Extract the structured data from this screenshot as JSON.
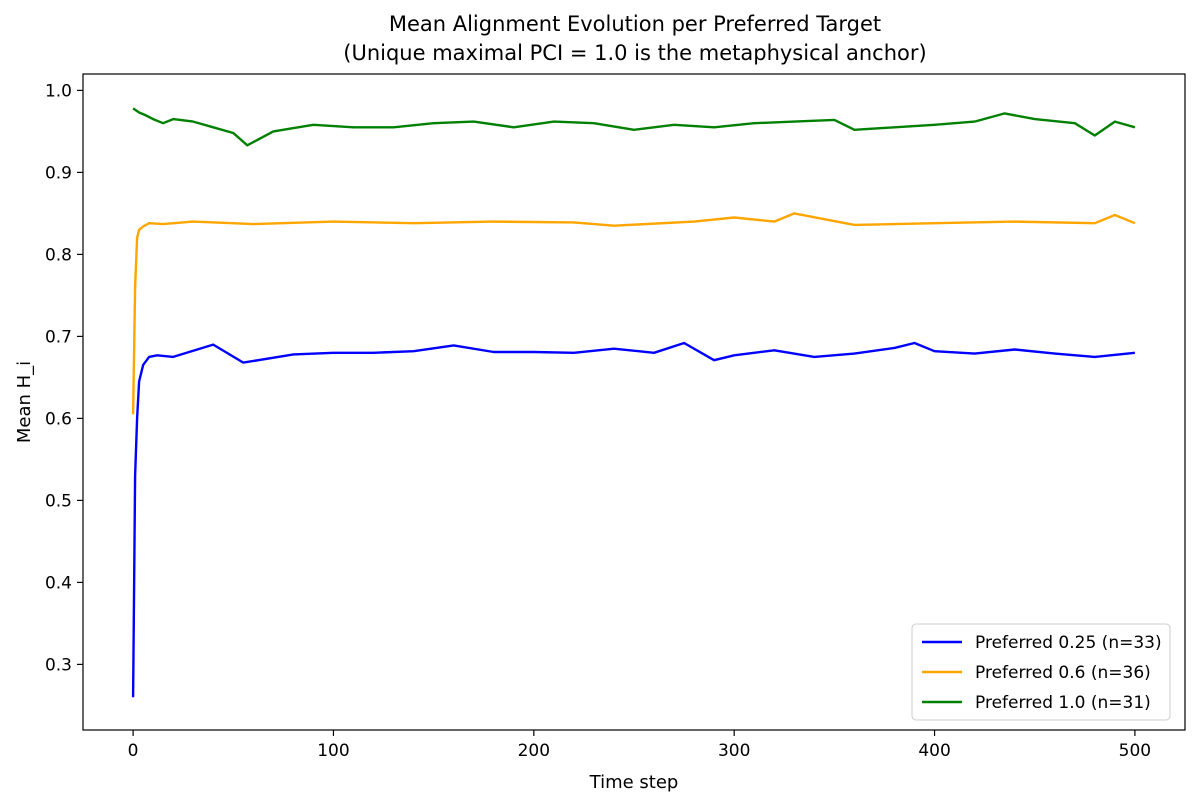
{
  "chart_data": {
    "type": "line",
    "title": "Mean Alignment Evolution per Preferred Target",
    "subtitle": "(Unique maximal PCI = 1.0 is the metaphysical anchor)",
    "xlabel": "Time step",
    "ylabel": "Mean H_i",
    "xlim": [
      -25,
      525
    ],
    "ylim": [
      0.22,
      1.02
    ],
    "xticks": [
      0,
      100,
      200,
      300,
      400,
      500
    ],
    "yticks": [
      0.3,
      0.4,
      0.5,
      0.6,
      0.7,
      0.8,
      0.9,
      1.0
    ],
    "xtick_labels": [
      "0",
      "100",
      "200",
      "300",
      "400",
      "500"
    ],
    "ytick_labels": [
      "0.3",
      "0.4",
      "0.5",
      "0.6",
      "0.7",
      "0.8",
      "0.9",
      "1.0"
    ],
    "grid": false,
    "legend_position": "lower-right",
    "series": [
      {
        "name": "Preferred 0.25 (n=33)",
        "color": "#0000ff",
        "x": [
          0,
          1,
          2,
          3,
          5,
          8,
          12,
          20,
          40,
          55,
          80,
          100,
          120,
          140,
          160,
          180,
          200,
          220,
          240,
          260,
          275,
          290,
          300,
          320,
          340,
          360,
          380,
          390,
          400,
          420,
          440,
          460,
          480,
          500
        ],
        "y": [
          0.26,
          0.53,
          0.6,
          0.645,
          0.665,
          0.675,
          0.677,
          0.675,
          0.69,
          0.668,
          0.678,
          0.68,
          0.68,
          0.682,
          0.689,
          0.681,
          0.681,
          0.68,
          0.685,
          0.68,
          0.692,
          0.671,
          0.677,
          0.683,
          0.675,
          0.679,
          0.686,
          0.692,
          0.682,
          0.679,
          0.684,
          0.679,
          0.675,
          0.68
        ]
      },
      {
        "name": "Preferred 0.6 (n=36)",
        "color": "#ffa500",
        "x": [
          0,
          1,
          2,
          3,
          5,
          8,
          15,
          30,
          60,
          100,
          140,
          180,
          220,
          240,
          280,
          300,
          320,
          330,
          360,
          400,
          440,
          480,
          490,
          500
        ],
        "y": [
          0.605,
          0.76,
          0.82,
          0.83,
          0.834,
          0.838,
          0.837,
          0.84,
          0.837,
          0.84,
          0.838,
          0.84,
          0.839,
          0.835,
          0.84,
          0.845,
          0.84,
          0.85,
          0.836,
          0.838,
          0.84,
          0.838,
          0.848,
          0.838
        ]
      },
      {
        "name": "Preferred 1.0 (n=31)",
        "color": "#008000",
        "x": [
          0,
          3,
          6,
          10,
          15,
          20,
          30,
          40,
          50,
          57,
          70,
          90,
          110,
          130,
          150,
          170,
          190,
          210,
          230,
          250,
          270,
          290,
          310,
          330,
          350,
          360,
          380,
          400,
          420,
          435,
          450,
          470,
          480,
          490,
          500
        ],
        "y": [
          0.978,
          0.973,
          0.97,
          0.965,
          0.96,
          0.965,
          0.962,
          0.955,
          0.948,
          0.933,
          0.95,
          0.958,
          0.955,
          0.955,
          0.96,
          0.962,
          0.955,
          0.962,
          0.96,
          0.952,
          0.958,
          0.955,
          0.96,
          0.962,
          0.964,
          0.952,
          0.955,
          0.958,
          0.962,
          0.972,
          0.965,
          0.96,
          0.945,
          0.962,
          0.955
        ]
      }
    ]
  }
}
